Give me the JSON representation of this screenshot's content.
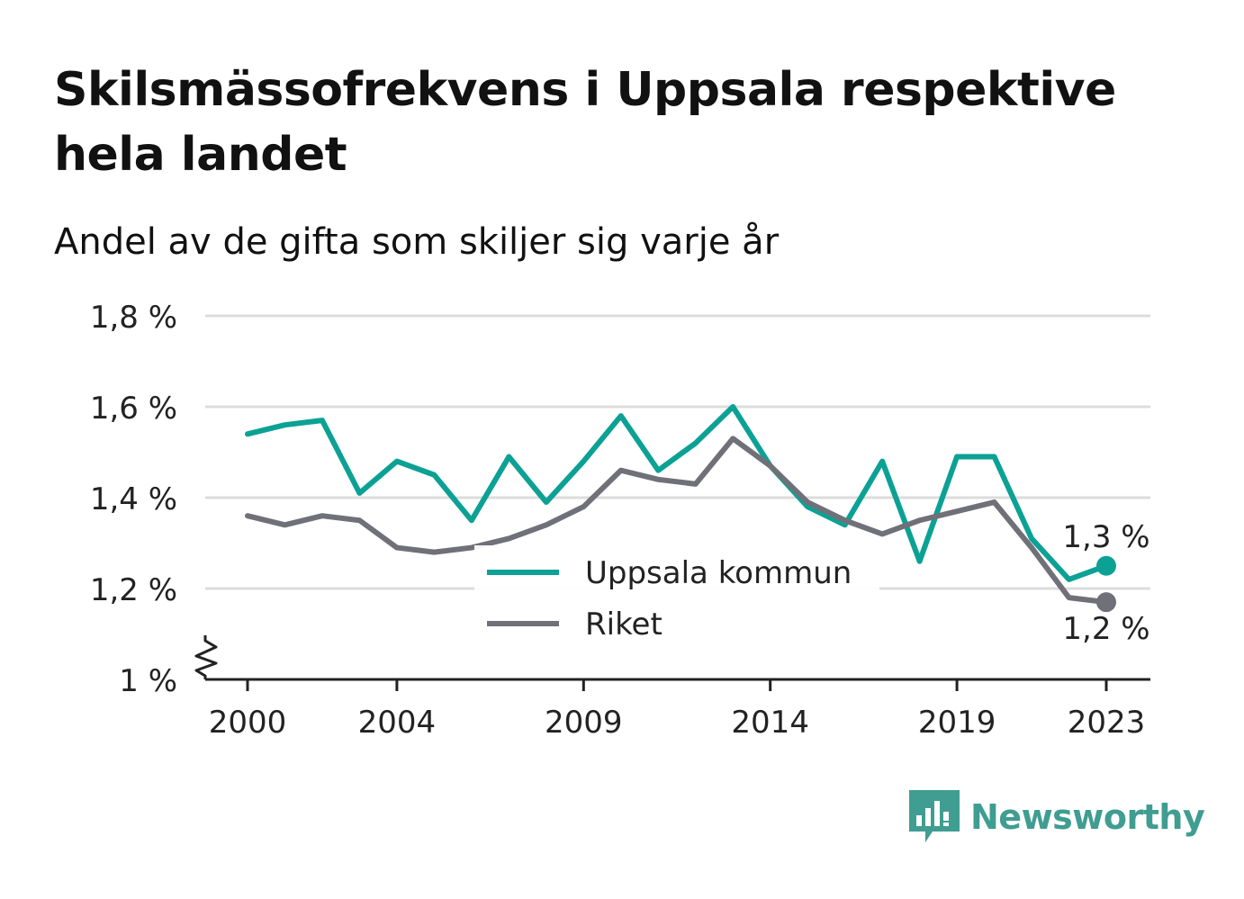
{
  "title": "Skilsmässofrekvens i Uppsala respektive hela landet",
  "subtitle": "Andel av de gifta som skiljer sig varje år",
  "brand": {
    "name": "Newsworthy",
    "color": "#3f9d91",
    "icon": "newsworthy-bar-chart-icon"
  },
  "chart_data": {
    "type": "line",
    "x": [
      2000,
      2001,
      2002,
      2003,
      2004,
      2005,
      2006,
      2007,
      2008,
      2009,
      2010,
      2011,
      2012,
      2013,
      2014,
      2015,
      2016,
      2017,
      2018,
      2019,
      2020,
      2021,
      2022,
      2023
    ],
    "xticks": [
      2000,
      2004,
      2009,
      2014,
      2019,
      2023
    ],
    "yticks": [
      {
        "value": 1.0,
        "label": "1 %"
      },
      {
        "value": 1.2,
        "label": "1,2 %"
      },
      {
        "value": 1.4,
        "label": "1,4 %"
      },
      {
        "value": 1.6,
        "label": "1,6 %"
      },
      {
        "value": 1.8,
        "label": "1,8 %"
      }
    ],
    "ylim": [
      1.0,
      1.8
    ],
    "y_axis_break": true,
    "grid": true,
    "legend_position": "center-bottom",
    "series": [
      {
        "name": "Uppsala kommun",
        "color": "#0ca195",
        "values": [
          1.54,
          1.56,
          1.57,
          1.41,
          1.48,
          1.45,
          1.35,
          1.49,
          1.39,
          1.48,
          1.58,
          1.46,
          1.52,
          1.6,
          1.47,
          1.38,
          1.34,
          1.48,
          1.26,
          1.49,
          1.49,
          1.31,
          1.22,
          1.25
        ],
        "end_label": "1,3 %"
      },
      {
        "name": "Riket",
        "color": "#707078",
        "values": [
          1.36,
          1.34,
          1.36,
          1.35,
          1.29,
          1.28,
          1.29,
          1.31,
          1.34,
          1.38,
          1.46,
          1.44,
          1.43,
          1.53,
          1.47,
          1.39,
          1.35,
          1.32,
          1.35,
          1.37,
          1.39,
          1.29,
          1.18,
          1.17
        ],
        "end_label": "1,2 %"
      }
    ]
  }
}
